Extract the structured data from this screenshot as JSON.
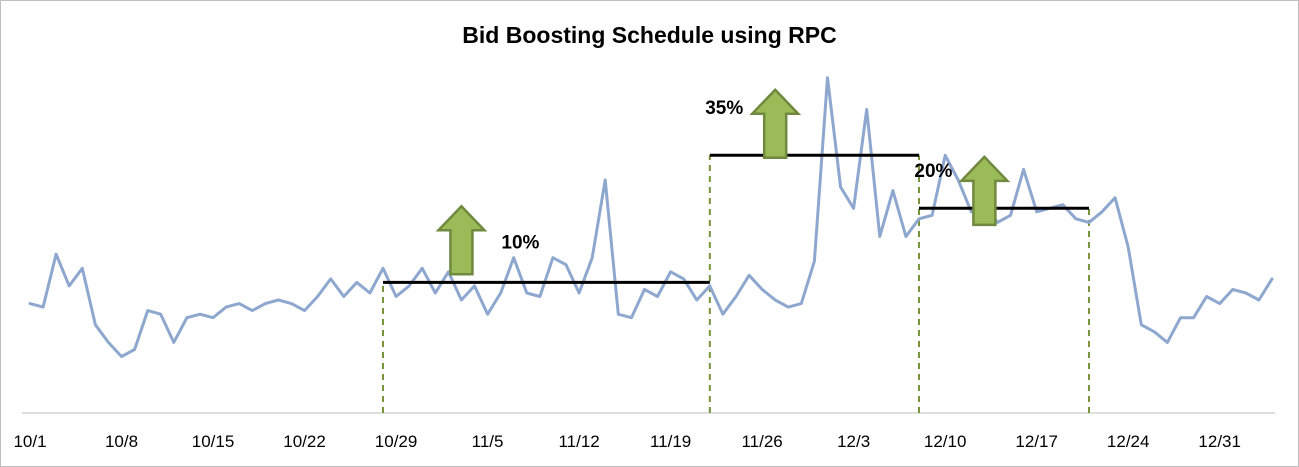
{
  "chart_data": {
    "type": "line",
    "title": "Bid Boosting Schedule using RPC",
    "xlabel": "",
    "ylabel": "",
    "tick_labels": [
      "10/1",
      "10/8",
      "10/15",
      "10/22",
      "10/29",
      "11/5",
      "11/12",
      "11/19",
      "11/26",
      "12/3",
      "12/10",
      "12/17",
      "12/24",
      "12/31"
    ],
    "x_start": "10/1",
    "grid": false,
    "ylim": [
      0,
      100
    ],
    "values": [
      31,
      30,
      45,
      36,
      41,
      25,
      20,
      16,
      18,
      29,
      28,
      20,
      27,
      28,
      27,
      30,
      31,
      29,
      31,
      32,
      31,
      29,
      33,
      38,
      33,
      37,
      34,
      41,
      33,
      36,
      41,
      34,
      40,
      32,
      36,
      28,
      34,
      44,
      34,
      33,
      44,
      42,
      34,
      44,
      66,
      28,
      27,
      35,
      33,
      40,
      38,
      32,
      36,
      28,
      33,
      39,
      35,
      32,
      30,
      31,
      43,
      95,
      64,
      58,
      86,
      50,
      63,
      50,
      55,
      56,
      73,
      66,
      57,
      59,
      54,
      56,
      69,
      57,
      58,
      59,
      55,
      54,
      57,
      61,
      47,
      25,
      23,
      20,
      27,
      27,
      33,
      31,
      35,
      34,
      32,
      38
    ],
    "boost_periods": [
      {
        "start": "10/28",
        "end": "11/22",
        "level": 37
      },
      {
        "start": "11/22",
        "end": "12/8",
        "level": 73
      },
      {
        "start": "12/8",
        "end": "12/21",
        "level": 58
      }
    ],
    "boost_markers": [
      "10/28",
      "11/22",
      "12/8",
      "12/21"
    ],
    "annotations": [
      {
        "label": "10%",
        "date": "11/3",
        "y": 58
      },
      {
        "label": "35%",
        "date": "11/27",
        "y": 91
      },
      {
        "label": "20%",
        "date": "12/13",
        "y": 72
      }
    ],
    "colors": {
      "line": "#8ea7cf",
      "boost_line": "#000000",
      "marker": "#77933c",
      "arrow_fill": "#9bbb59",
      "arrow_stroke": "#71893f",
      "axis": "#bfbfbf"
    }
  }
}
